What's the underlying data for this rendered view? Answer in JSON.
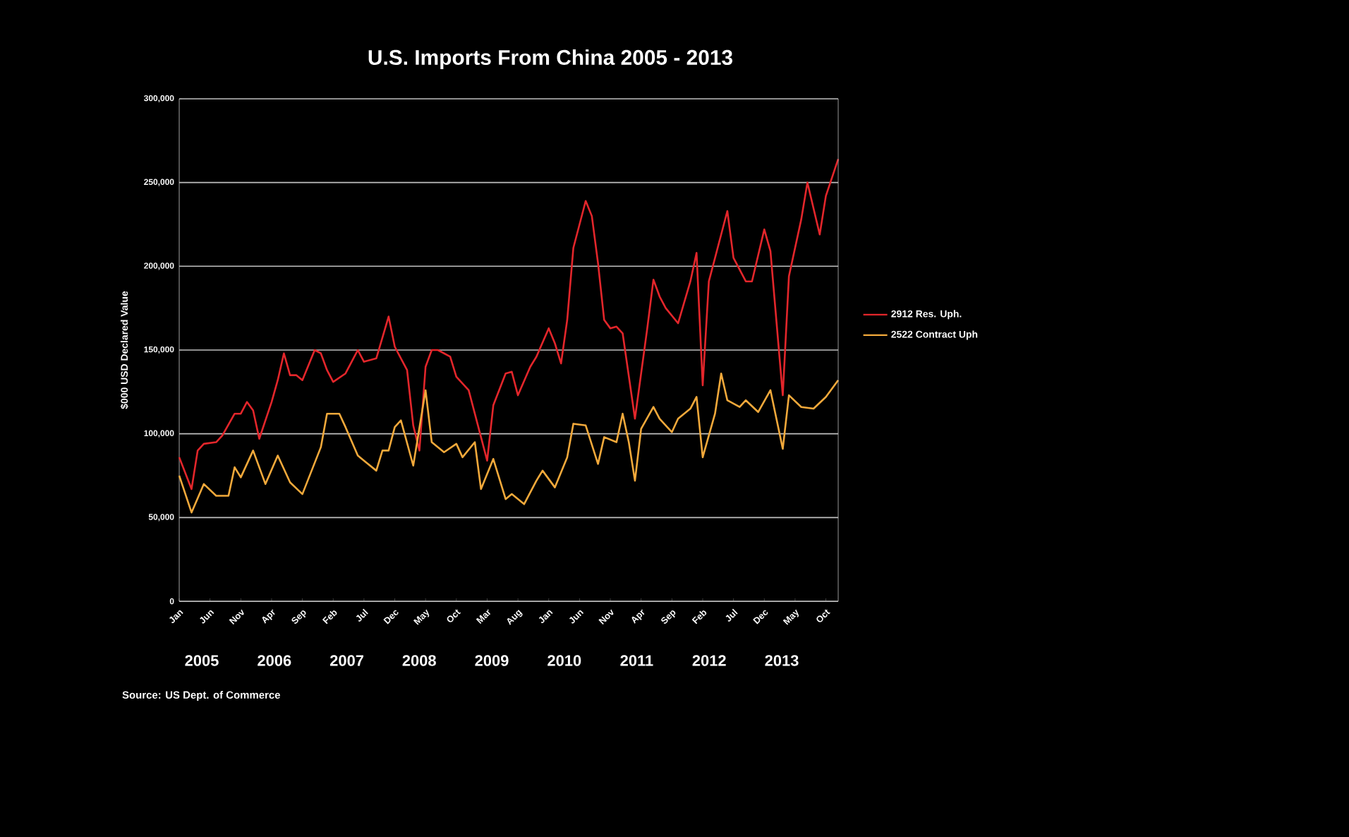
{
  "chart_data": {
    "type": "line",
    "title": "U.S. Imports From China 2005 - 2013",
    "ylabel": "$000 USD Declared Value",
    "xlim": [
      "2005-01",
      "2013-12"
    ],
    "ylim": [
      0,
      300000
    ],
    "xticks": [
      {
        "value": "2005-01",
        "label": "Jan"
      },
      {
        "value": "2005-06",
        "label": "Jun"
      },
      {
        "value": "2005-11",
        "label": "Nov"
      },
      {
        "value": "2006-04",
        "label": "Apr"
      },
      {
        "value": "2006-09",
        "label": "Sep"
      },
      {
        "value": "2007-02",
        "label": "Feb"
      },
      {
        "value": "2007-07",
        "label": "Jul"
      },
      {
        "value": "2007-12",
        "label": "Dec"
      },
      {
        "value": "2008-05",
        "label": "May"
      },
      {
        "value": "2008-10",
        "label": "Oct"
      },
      {
        "value": "2009-03",
        "label": "Mar"
      },
      {
        "value": "2009-08",
        "label": "Aug"
      },
      {
        "value": "2010-01",
        "label": "Jan"
      },
      {
        "value": "2010-06",
        "label": "Jun"
      },
      {
        "value": "2010-11",
        "label": "Nov"
      },
      {
        "value": "2011-04",
        "label": "Apr"
      },
      {
        "value": "2011-09",
        "label": "Sep"
      },
      {
        "value": "2012-02",
        "label": "Feb"
      },
      {
        "value": "2012-07",
        "label": "Jul"
      },
      {
        "value": "2012-12",
        "label": "Dec"
      },
      {
        "value": "2013-05",
        "label": "May"
      },
      {
        "value": "2013-10",
        "label": "Oct"
      }
    ],
    "yticks": [
      {
        "value": 0,
        "label": "0"
      },
      {
        "value": 50000,
        "label": "50,000"
      },
      {
        "value": 100000,
        "label": "100,000"
      },
      {
        "value": 150000,
        "label": "150,000"
      },
      {
        "value": 200000,
        "label": "200,000"
      },
      {
        "value": 250000,
        "label": "250,000"
      },
      {
        "value": 300000,
        "label": "300,000"
      }
    ],
    "grid": "y",
    "legend": "right",
    "marker": "none",
    "line_style": "solid",
    "series": [
      {
        "name": "2912 Res. Uph.",
        "color": "#e3262b",
        "x": [
          "2005-01",
          "2005-03",
          "2005-04",
          "2005-05",
          "2005-07",
          "2005-08",
          "2005-10",
          "2005-11",
          "2005-12",
          "2006-01",
          "2006-02",
          "2006-04",
          "2006-05",
          "2006-06",
          "2006-07",
          "2006-08",
          "2006-09",
          "2006-11",
          "2006-12",
          "2007-01",
          "2007-02",
          "2007-04",
          "2007-06",
          "2007-07",
          "2007-09",
          "2007-11",
          "2007-12",
          "2008-02",
          "2008-03",
          "2008-04",
          "2008-05",
          "2008-06",
          "2008-07",
          "2008-09",
          "2008-10",
          "2008-12",
          "2009-03",
          "2009-04",
          "2009-06",
          "2009-07",
          "2009-08",
          "2009-10",
          "2009-11",
          "2010-01",
          "2010-02",
          "2010-03",
          "2010-04",
          "2010-05",
          "2010-07",
          "2010-08",
          "2010-09",
          "2010-10",
          "2010-11",
          "2010-12",
          "2011-01",
          "2011-03",
          "2011-05",
          "2011-06",
          "2011-07",
          "2011-08",
          "2011-10",
          "2011-12",
          "2012-01",
          "2012-02",
          "2012-03",
          "2012-05",
          "2012-06",
          "2012-07",
          "2012-09",
          "2012-10",
          "2012-12",
          "2013-01",
          "2013-03",
          "2013-04",
          "2013-06",
          "2013-07",
          "2013-09",
          "2013-10",
          "2013-12"
        ],
        "values": [
          86000,
          67000,
          90000,
          94000,
          95000,
          99000,
          112000,
          112000,
          119000,
          114000,
          97000,
          119000,
          132000,
          148000,
          135000,
          135000,
          132000,
          150000,
          148000,
          138000,
          131000,
          136000,
          150000,
          143000,
          145000,
          170000,
          152000,
          138000,
          105000,
          90000,
          140000,
          150000,
          150000,
          146000,
          134000,
          126000,
          84000,
          117000,
          136000,
          137000,
          123000,
          140000,
          146000,
          163000,
          154000,
          142000,
          168000,
          211000,
          239000,
          230000,
          202000,
          168000,
          163000,
          164000,
          160000,
          109000,
          163000,
          192000,
          182000,
          175000,
          166000,
          191000,
          208000,
          129000,
          191000,
          219000,
          233000,
          205000,
          191000,
          191000,
          222000,
          209000,
          123000,
          194000,
          228000,
          250000,
          219000,
          242000,
          264000
        ]
      },
      {
        "name": "2522 Contract Uph",
        "color": "#f2a93b",
        "x": [
          "2005-01",
          "2005-03",
          "2005-05",
          "2005-07",
          "2005-09",
          "2005-10",
          "2005-11",
          "2006-01",
          "2006-03",
          "2006-05",
          "2006-07",
          "2006-09",
          "2006-12",
          "2007-01",
          "2007-03",
          "2007-04",
          "2007-06",
          "2007-07",
          "2007-09",
          "2007-10",
          "2007-11",
          "2007-12",
          "2008-01",
          "2008-03",
          "2008-05",
          "2008-06",
          "2008-08",
          "2008-10",
          "2008-11",
          "2009-01",
          "2009-02",
          "2009-04",
          "2009-06",
          "2009-07",
          "2009-09",
          "2009-11",
          "2009-12",
          "2010-02",
          "2010-04",
          "2010-05",
          "2010-07",
          "2010-09",
          "2010-10",
          "2010-12",
          "2011-01",
          "2011-02",
          "2011-03",
          "2011-04",
          "2011-06",
          "2011-07",
          "2011-09",
          "2011-10",
          "2011-12",
          "2012-01",
          "2012-02",
          "2012-04",
          "2012-05",
          "2012-06",
          "2012-08",
          "2012-09",
          "2012-11",
          "2013-01",
          "2013-03",
          "2013-04",
          "2013-06",
          "2013-08",
          "2013-10",
          "2013-12"
        ],
        "values": [
          75000,
          53000,
          70000,
          63000,
          63000,
          80000,
          74000,
          90000,
          70000,
          87000,
          71000,
          64000,
          92000,
          112000,
          112000,
          104000,
          87000,
          84000,
          78000,
          90000,
          90000,
          104000,
          108000,
          81000,
          126000,
          95000,
          89000,
          94000,
          86000,
          95000,
          67000,
          85000,
          61000,
          64000,
          58000,
          72000,
          78000,
          68000,
          86000,
          106000,
          105000,
          82000,
          98000,
          95000,
          112000,
          95000,
          72000,
          103000,
          116000,
          109000,
          101000,
          109000,
          115000,
          122000,
          86000,
          112000,
          136000,
          120000,
          116000,
          120000,
          113000,
          126000,
          91000,
          123000,
          116000,
          115000,
          122000,
          132000
        ]
      }
    ],
    "annotations": [
      "2005",
      "2006",
      "2007",
      "2008",
      "2009",
      "2010",
      "2011",
      "2012",
      "2013",
      "Source: US Dept. of Commerce"
    ]
  }
}
